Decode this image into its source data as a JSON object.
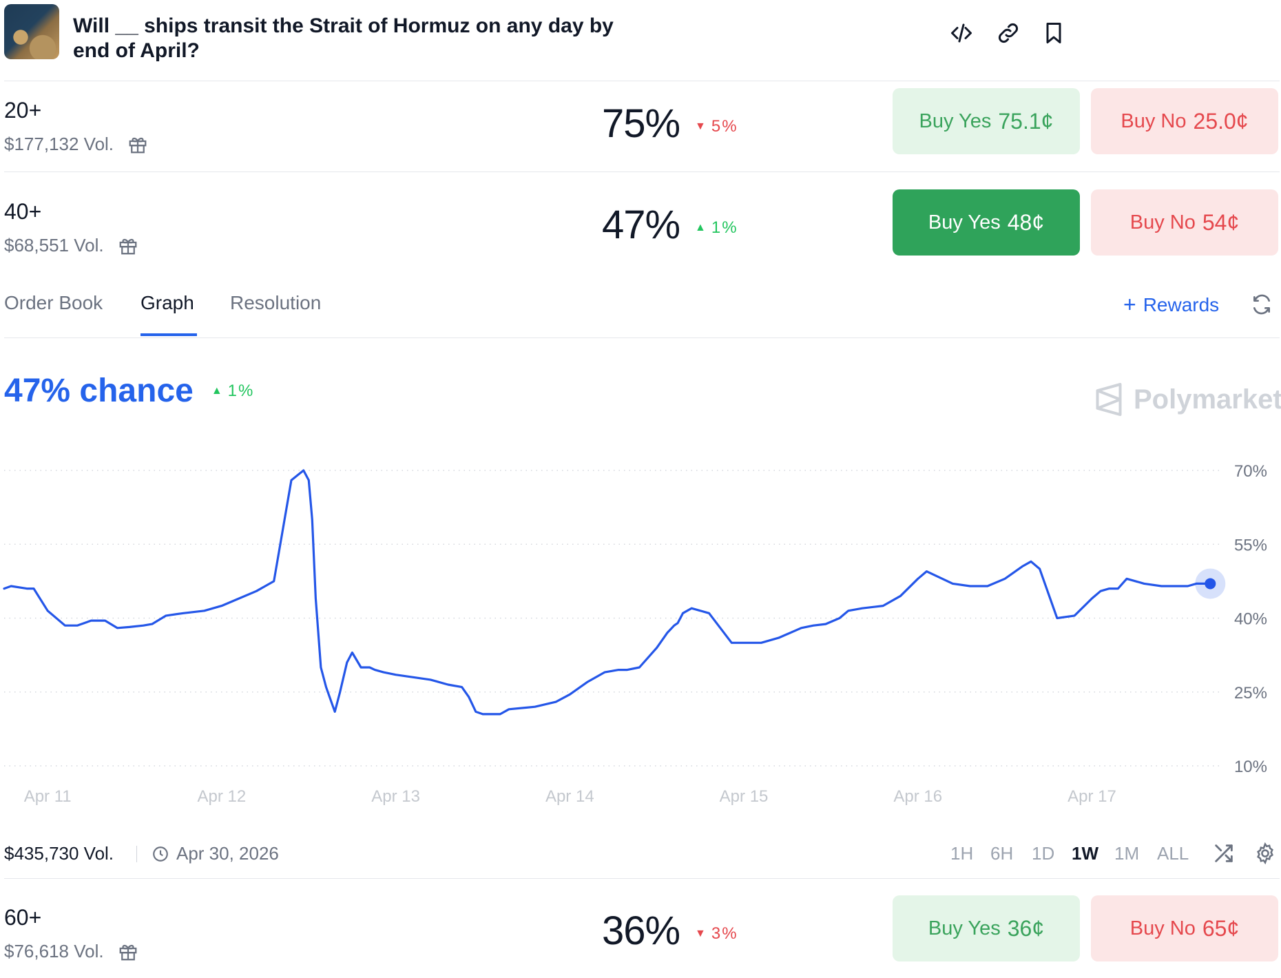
{
  "header": {
    "title": "Will __ ships transit the Strait of Hormuz on any day by end of April?",
    "icons": [
      "embed-code-icon",
      "link-icon",
      "bookmark-icon"
    ]
  },
  "outcomes": [
    {
      "name": "20+",
      "volume": "$177,132 Vol.",
      "percent": "75%",
      "change": "5%",
      "direction": "down",
      "buy_yes_label": "Buy Yes",
      "buy_yes_price": "75.1¢",
      "buy_no_label": "Buy No",
      "buy_no_price": "25.0¢"
    },
    {
      "name": "40+",
      "volume": "$68,551 Vol.",
      "percent": "47%",
      "change": "1%",
      "direction": "up",
      "buy_yes_label": "Buy Yes",
      "buy_yes_price": "48¢",
      "buy_no_label": "Buy No",
      "buy_no_price": "54¢"
    },
    {
      "name": "60+",
      "volume": "$76,618 Vol.",
      "percent": "36%",
      "change": "3%",
      "direction": "down",
      "buy_yes_label": "Buy Yes",
      "buy_yes_price": "36¢",
      "buy_no_label": "Buy No",
      "buy_no_price": "65¢"
    }
  ],
  "tabs": [
    {
      "label": "Order Book"
    },
    {
      "label": "Graph",
      "active": true
    },
    {
      "label": "Resolution"
    }
  ],
  "rewards_label": "Rewards",
  "graph": {
    "chance": "47% chance",
    "change": "1%",
    "brand": "Polymarket"
  },
  "footer": {
    "volume": "$435,730 Vol.",
    "end_date": "Apr 30, 2026",
    "ranges": [
      "1H",
      "6H",
      "1D",
      "1W",
      "1M",
      "ALL"
    ],
    "active_range": "1W"
  },
  "colors": {
    "accent": "#2563eb",
    "up": "#22c55e",
    "down": "#e5484d",
    "yes_bg": "#e4f5e8",
    "yes_active_bg": "#2fa35a",
    "no_bg": "#fce6e6"
  },
  "chart_data": {
    "type": "line",
    "y_ticks": [
      "70%",
      "55%",
      "40%",
      "25%",
      "10%"
    ],
    "x_ticks": [
      "Apr 11",
      "Apr 12",
      "Apr 13",
      "Apr 14",
      "Apr 15",
      "Apr 16",
      "Apr 17"
    ],
    "ylim": [
      10,
      70
    ],
    "xlim": [
      10.75,
      17.75
    ],
    "series": [
      {
        "x": [
          10.75,
          10.79,
          10.88,
          10.92,
          11.0,
          11.1,
          11.17,
          11.25,
          11.33,
          11.4,
          11.47,
          11.55,
          11.6,
          11.68,
          11.78,
          11.9,
          12.0,
          12.1,
          12.2,
          12.3,
          12.4,
          12.47,
          12.5,
          12.52,
          12.54,
          12.57,
          12.6,
          12.63,
          12.65,
          12.68,
          12.72,
          12.75,
          12.8,
          12.83,
          12.85,
          12.88,
          12.93,
          13.0,
          13.1,
          13.2,
          13.3,
          13.38,
          13.42,
          13.46,
          13.5,
          13.55,
          13.6,
          13.65,
          13.8,
          13.92,
          14.0,
          14.1,
          14.2,
          14.28,
          14.33,
          14.4,
          14.5,
          14.56,
          14.6,
          14.62,
          14.65,
          14.7,
          14.8,
          14.93,
          15.0,
          15.1,
          15.2,
          15.33,
          15.4,
          15.47,
          15.55,
          15.6,
          15.68,
          15.8,
          15.9,
          16.0,
          16.05,
          16.2,
          16.3,
          16.4,
          16.5,
          16.6,
          16.65,
          16.7,
          16.8,
          16.9,
          17.0,
          17.05,
          17.1,
          17.15,
          17.2,
          17.3,
          17.4,
          17.47,
          17.5,
          17.55,
          17.6,
          17.63,
          17.65,
          17.68
        ],
        "y": [
          46,
          46.5,
          46,
          46,
          41.5,
          38.5,
          38.5,
          39.5,
          39.5,
          38,
          38.2,
          38.5,
          38.8,
          40.5,
          41,
          41.5,
          42.5,
          44,
          45.5,
          47.5,
          68,
          70,
          68,
          60,
          44,
          30,
          26,
          23,
          21,
          25,
          31,
          33,
          30,
          30,
          30,
          29.5,
          29,
          28.5,
          28,
          27.5,
          26.5,
          26,
          24,
          21,
          20.5,
          20.5,
          20.5,
          21.5,
          22,
          23,
          24.5,
          27,
          29,
          29.5,
          29.5,
          30,
          34,
          37,
          38.5,
          39,
          41,
          42,
          41,
          35,
          35,
          35,
          36,
          38,
          38.5,
          38.8,
          40,
          41.5,
          42,
          42.5,
          44.5,
          48,
          49.5,
          47,
          46.5,
          46.5,
          48,
          50.5,
          51.5,
          50,
          40,
          40.5,
          44,
          45.5,
          46,
          46,
          48,
          47,
          46.5,
          46.5,
          46.5,
          46.5,
          47,
          47,
          47,
          47
        ]
      }
    ],
    "grid": true,
    "last_point_marker": true
  }
}
